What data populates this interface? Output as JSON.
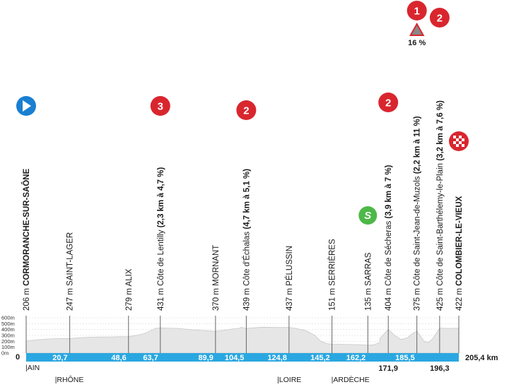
{
  "chart_data": {
    "type": "area",
    "xlim": [
      0,
      205.4
    ],
    "ylim": [
      0,
      600
    ],
    "y_ticks": [
      "600m",
      "500m",
      "400m",
      "300m",
      "200m",
      "100m",
      "0m"
    ],
    "y_tick_values": [
      600,
      500,
      400,
      300,
      200,
      100,
      0
    ],
    "profile": {
      "x": [
        0,
        5,
        10,
        14,
        18,
        20.7,
        25,
        30,
        35,
        40,
        45,
        48.6,
        52,
        56,
        59,
        61.4,
        63.7,
        67,
        72,
        78,
        84,
        89.9,
        94,
        98,
        101,
        102.2,
        104.5,
        108,
        112,
        117,
        121,
        124.8,
        128,
        133,
        137,
        140,
        143,
        145.2,
        150,
        155,
        160,
        162.2,
        165,
        168,
        168,
        171.9,
        175,
        178,
        181,
        183.3,
        185.5,
        189,
        191,
        193.1,
        196.3,
        200,
        203,
        205.4
      ],
      "y": [
        206,
        225,
        240,
        245,
        248,
        247,
        260,
        270,
        275,
        275,
        278,
        279,
        300,
        330,
        380,
        420,
        431,
        425,
        420,
        400,
        385,
        370,
        390,
        410,
        420,
        439,
        420,
        430,
        440,
        438,
        437,
        437,
        420,
        380,
        300,
        200,
        160,
        151,
        148,
        145,
        140,
        135,
        140,
        180,
        250,
        404,
        300,
        230,
        260,
        330,
        375,
        200,
        180,
        250,
        425,
        420,
        421,
        422
      ]
    },
    "points": [
      {
        "km_mark": "",
        "altitude": "206 m",
        "name": "CORMORANCHE-SUR-SAÔNE",
        "bold": true,
        "km": 0
      },
      {
        "km_mark": "20,7",
        "altitude": "247 m",
        "name": "SAINT-LAGER",
        "bold": false,
        "km": 20.7
      },
      {
        "km_mark": "48,6",
        "altitude": "279 m",
        "name": "ALIX",
        "bold": false,
        "km": 48.6
      },
      {
        "km_mark": "63,7",
        "altitude": "431 m",
        "name": "Côte de Lentilly",
        "extra": "(2,3 km à 4,7 %)",
        "bold": false,
        "km": 63.7
      },
      {
        "km_mark": "89,9",
        "altitude": "370 m",
        "name": "MORNANT",
        "bold": false,
        "km": 89.9
      },
      {
        "km_mark": "104,5",
        "altitude": "439 m",
        "name": "Côte d'Échalas",
        "extra": "(4,7 km à 5,1 %)",
        "bold": false,
        "km": 104.5
      },
      {
        "km_mark": "124,8",
        "altitude": "437 m",
        "name": "PÉLUSSIN",
        "bold": false,
        "km": 124.8
      },
      {
        "km_mark": "145,2",
        "altitude": "151 m",
        "name": "SERRIÈRES",
        "bold": false,
        "km": 145.2
      },
      {
        "km_mark": "162,2",
        "altitude": "135 m",
        "name": "SARRAS",
        "bold": false,
        "km": 162.2
      },
      {
        "km_mark": "171,9",
        "altitude": "404 m",
        "name": "Côte de Sécheras",
        "extra": "(3,9 km à 7 %)",
        "bold": false,
        "km": 171.9
      },
      {
        "km_mark": "185,5",
        "altitude": "375 m",
        "name": "Côte de Saint-Jean-de-Muzols",
        "extra": "(2,2 km à 11 %)",
        "bold": false,
        "km": 185.5
      },
      {
        "km_mark": "196,3",
        "altitude": "425 m",
        "name": "Côte de Saint-Barthélemy-le-Plain",
        "extra": "(3,2 km à 7,6 %)",
        "bold": false,
        "km": 196.3
      },
      {
        "km_mark": "205,4 km",
        "altitude": "422 m",
        "name": "COLOMBIER-LE-VIEUX",
        "bold": true,
        "km": 205.4
      }
    ],
    "km_labels": [
      {
        "text": "20,7",
        "km": 20.7,
        "row": "bar"
      },
      {
        "text": "48,6",
        "km": 48.6,
        "row": "bar"
      },
      {
        "text": "63,7",
        "km": 63.7,
        "row": "bar"
      },
      {
        "text": "89,9",
        "km": 89.9,
        "row": "bar"
      },
      {
        "text": "104,5",
        "km": 104.5,
        "row": "bar"
      },
      {
        "text": "124,8",
        "km": 124.8,
        "row": "bar"
      },
      {
        "text": "145,2",
        "km": 145.2,
        "row": "bar"
      },
      {
        "text": "162,2",
        "km": 162.2,
        "row": "bar"
      },
      {
        "text": "185,5",
        "km": 185.5,
        "row": "bar"
      },
      {
        "text": "171,9",
        "km": 171.9,
        "row": "below"
      },
      {
        "text": "196,3",
        "km": 196.3,
        "row": "below"
      }
    ],
    "start_km": "0",
    "total_distance": "205,4 km",
    "regions": [
      {
        "name": "|AIN",
        "km": 0
      },
      {
        "name": "|RHÔNE",
        "km": 14
      },
      {
        "name": "|LOIRE",
        "km": 119.5
      },
      {
        "name": "|ARDÈCHE",
        "km": 145.2
      }
    ],
    "climbs": [
      {
        "category": "3",
        "km": 63.7,
        "color": "#d9262e",
        "label": "Côte de Lentilly"
      },
      {
        "category": "2",
        "km": 104.5,
        "color": "#d9262e",
        "label": "Côte d'Échalas"
      },
      {
        "category": "2",
        "km": 171.9,
        "color": "#d9262e",
        "label": "Côte de Sécheras"
      },
      {
        "category": "1",
        "km": 185.5,
        "color": "#d9262e",
        "label": "Côte de Saint-Jean-de-Muzols",
        "gradient": "16 %"
      },
      {
        "category": "2",
        "km": 196.3,
        "color": "#d9262e",
        "label": "Côte de Saint-Barthélemy-le-Plain"
      }
    ],
    "sprint": {
      "km": 162.2,
      "symbol": "S",
      "color": "#4db848"
    },
    "start_icon": {
      "name": "start-play-icon",
      "color": "#1a7fd1"
    },
    "finish_icon": {
      "name": "finish-flag-icon",
      "color": "#d9262e"
    },
    "colors": {
      "bar": "#2aa7e1",
      "profile": "#e6e6e6",
      "profile_line": "#c9c9c9",
      "grid": "#999999"
    }
  }
}
